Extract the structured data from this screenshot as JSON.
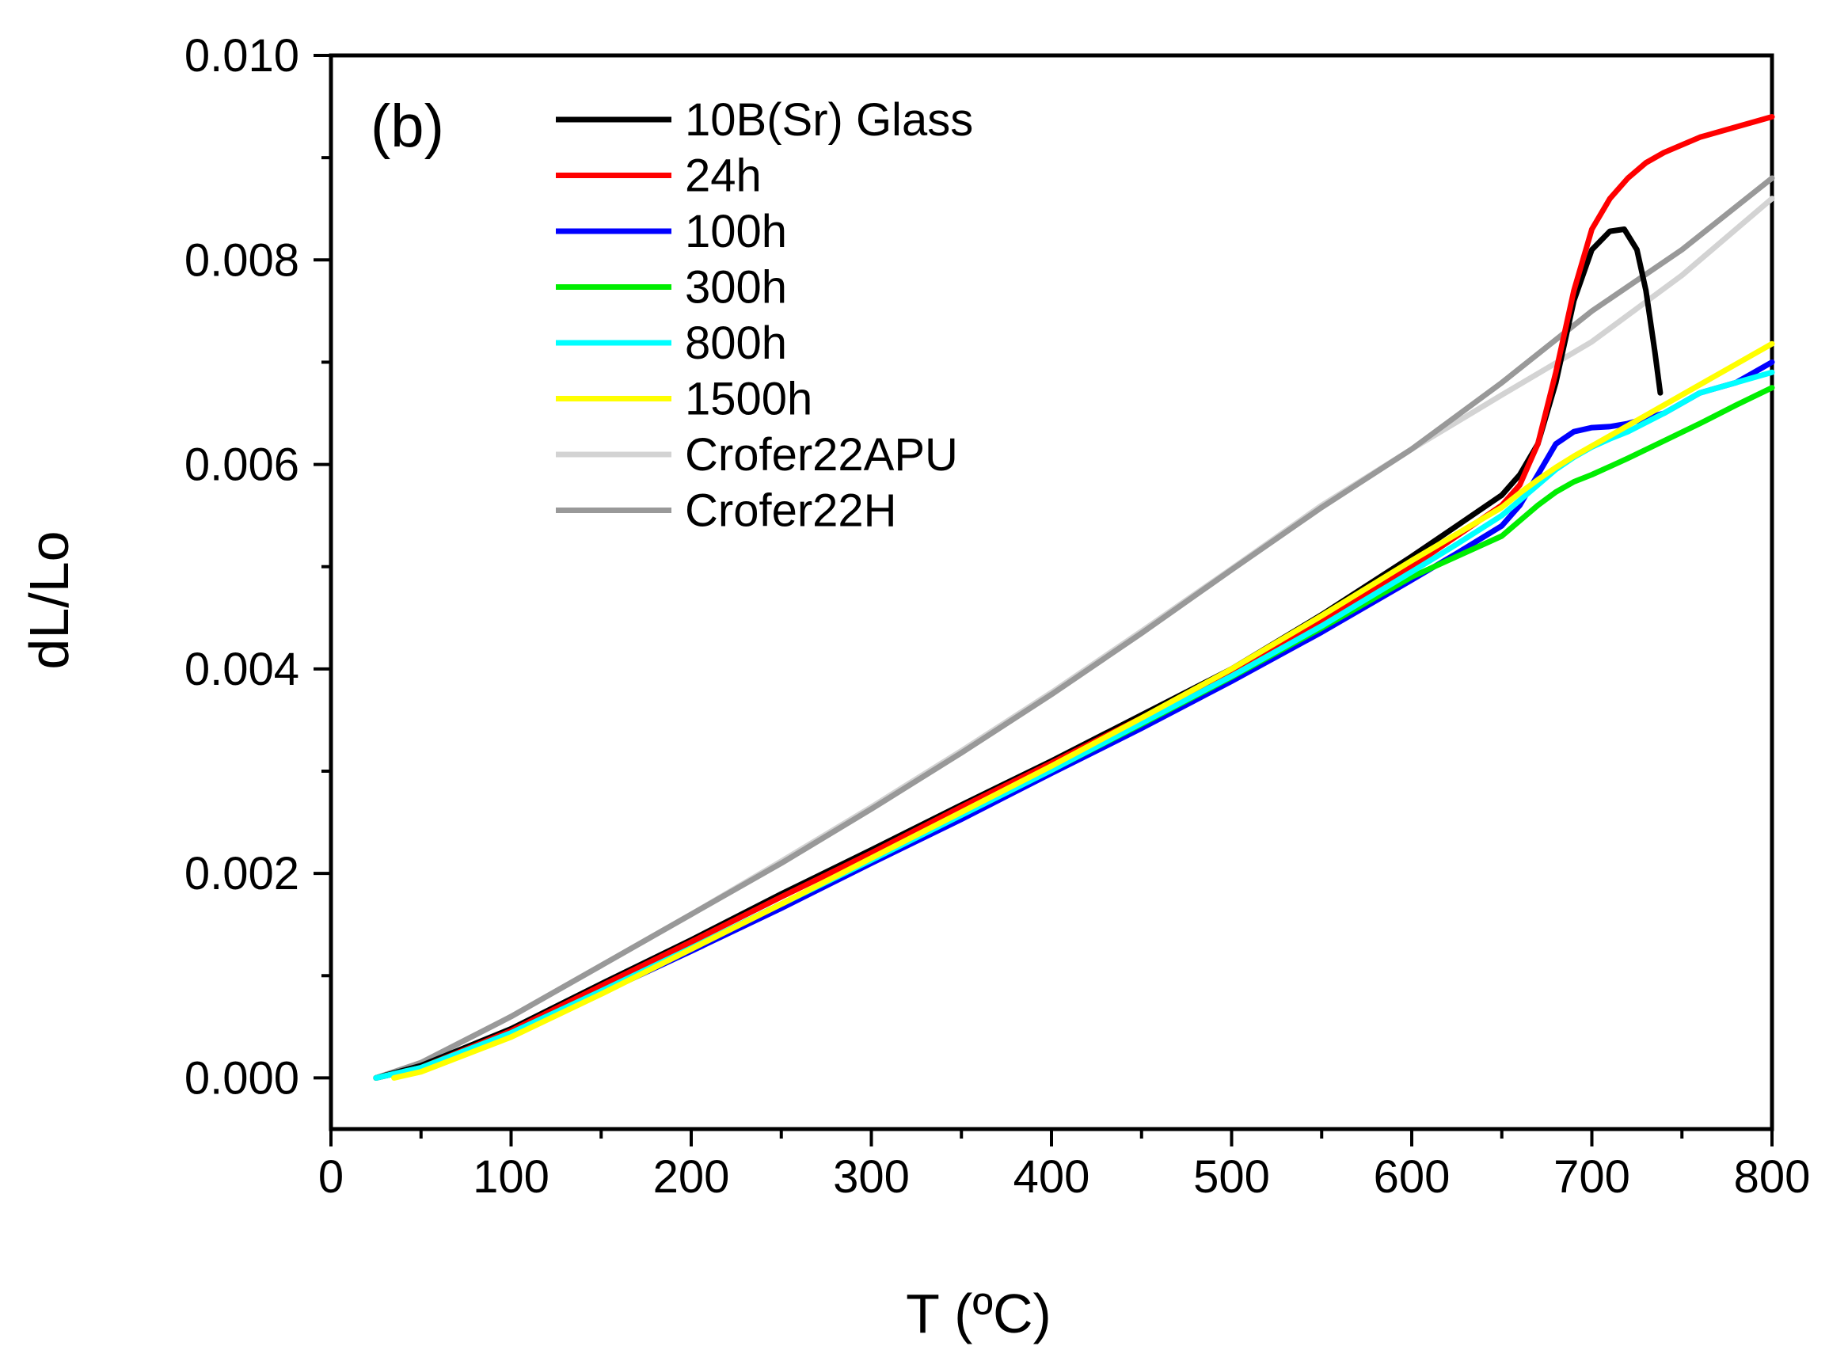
{
  "chart_data": {
    "type": "line",
    "panel_label": "(b)",
    "title": "",
    "xlabel": "T (ºC)",
    "ylabel": "dL/Lo",
    "xlim": [
      0,
      800
    ],
    "ylim": [
      -0.0005,
      0.01
    ],
    "xticks": [
      0,
      100,
      200,
      300,
      400,
      500,
      600,
      700,
      800
    ],
    "xtick_labels": [
      "0",
      "100",
      "200",
      "300",
      "400",
      "500",
      "600",
      "700",
      "800"
    ],
    "yticks": [
      0.0,
      0.002,
      0.004,
      0.006,
      0.008,
      0.01
    ],
    "ytick_labels": [
      "0.000",
      "0.002",
      "0.004",
      "0.006",
      "0.008",
      "0.010"
    ],
    "grid": false,
    "legend_position": "top-left",
    "series": [
      {
        "name": "10B(Sr) Glass",
        "color": "#000000",
        "x": [
          25,
          50,
          100,
          150,
          200,
          250,
          300,
          350,
          400,
          450,
          500,
          550,
          600,
          625,
          650,
          660,
          670,
          680,
          690,
          700,
          710,
          718,
          725,
          730,
          735,
          738
        ],
        "y": [
          0.0,
          0.00012,
          0.00048,
          0.00092,
          0.00135,
          0.0018,
          0.00223,
          0.00267,
          0.0031,
          0.00355,
          0.004,
          0.00453,
          0.0051,
          0.0054,
          0.0057,
          0.0059,
          0.0062,
          0.0068,
          0.0076,
          0.0081,
          0.00828,
          0.0083,
          0.0081,
          0.0077,
          0.0071,
          0.0067
        ]
      },
      {
        "name": "24h",
        "color": "#ff0000",
        "x": [
          25,
          50,
          100,
          150,
          200,
          250,
          300,
          350,
          400,
          450,
          500,
          550,
          600,
          625,
          650,
          660,
          670,
          680,
          690,
          700,
          710,
          720,
          730,
          740,
          760,
          780,
          800
        ],
        "y": [
          0.0,
          0.0001,
          0.00046,
          0.0009,
          0.00133,
          0.00177,
          0.0022,
          0.00265,
          0.00308,
          0.00352,
          0.00397,
          0.00446,
          0.005,
          0.0053,
          0.0056,
          0.0058,
          0.0062,
          0.0069,
          0.0077,
          0.0083,
          0.0086,
          0.0088,
          0.00895,
          0.00905,
          0.0092,
          0.0093,
          0.0094
        ]
      },
      {
        "name": "100h",
        "color": "#0000ff",
        "x": [
          25,
          50,
          100,
          150,
          200,
          250,
          300,
          350,
          400,
          450,
          500,
          550,
          600,
          625,
          650,
          660,
          670,
          680,
          690,
          700,
          710,
          720,
          740,
          760,
          780,
          800
        ],
        "y": [
          0.0,
          0.0001,
          0.00043,
          0.00083,
          0.00124,
          0.00166,
          0.0021,
          0.00253,
          0.00298,
          0.00342,
          0.00388,
          0.00436,
          0.00487,
          0.00513,
          0.0054,
          0.0056,
          0.0059,
          0.0062,
          0.00632,
          0.00636,
          0.00637,
          0.0064,
          0.0065,
          0.0067,
          0.0068,
          0.007
        ]
      },
      {
        "name": "300h",
        "color": "#00ee00",
        "x": [
          25,
          50,
          100,
          150,
          200,
          250,
          300,
          350,
          400,
          450,
          500,
          550,
          600,
          625,
          650,
          660,
          670,
          680,
          690,
          700,
          710,
          720,
          740,
          760,
          780,
          800
        ],
        "y": [
          0.0,
          0.0001,
          0.00044,
          0.00085,
          0.00127,
          0.0017,
          0.00213,
          0.00257,
          0.00301,
          0.00346,
          0.00392,
          0.0044,
          0.0049,
          0.0051,
          0.0053,
          0.00545,
          0.0056,
          0.00573,
          0.00583,
          0.0059,
          0.00598,
          0.00606,
          0.00623,
          0.0064,
          0.00658,
          0.00675
        ]
      },
      {
        "name": "800h",
        "color": "#00ffff",
        "x": [
          25,
          50,
          100,
          150,
          200,
          250,
          300,
          350,
          400,
          450,
          500,
          550,
          600,
          625,
          650,
          660,
          670,
          680,
          690,
          700,
          710,
          720,
          740,
          760,
          780,
          800
        ],
        "y": [
          0.0,
          0.0001,
          0.00044,
          0.00085,
          0.00127,
          0.0017,
          0.00213,
          0.00257,
          0.00301,
          0.00347,
          0.00393,
          0.00442,
          0.00495,
          0.00522,
          0.0055,
          0.00565,
          0.0058,
          0.00595,
          0.00607,
          0.00617,
          0.00625,
          0.00632,
          0.0065,
          0.0067,
          0.0068,
          0.0069
        ]
      },
      {
        "name": "1500h",
        "color": "#ffff00",
        "x": [
          35,
          50,
          100,
          150,
          200,
          250,
          300,
          350,
          400,
          450,
          500,
          550,
          600,
          625,
          650,
          660,
          670,
          680,
          690,
          700,
          710,
          720,
          740,
          760,
          780,
          800
        ],
        "y": [
          0.0,
          6e-05,
          0.0004,
          0.00082,
          0.00126,
          0.0017,
          0.00215,
          0.0026,
          0.00305,
          0.00352,
          0.004,
          0.00452,
          0.00506,
          0.00532,
          0.00558,
          0.00572,
          0.00585,
          0.00597,
          0.00608,
          0.00618,
          0.00628,
          0.00638,
          0.00658,
          0.00678,
          0.00698,
          0.00718
        ]
      },
      {
        "name": "Crofer22APU",
        "color": "#d3d3d3",
        "x": [
          25,
          50,
          100,
          150,
          200,
          250,
          300,
          350,
          400,
          450,
          500,
          550,
          600,
          650,
          700,
          750,
          800
        ],
        "y": [
          0.0,
          0.00015,
          0.0006,
          0.0011,
          0.0016,
          0.00212,
          0.00265,
          0.0032,
          0.00377,
          0.00437,
          0.00498,
          0.0056,
          0.00615,
          0.00668,
          0.0072,
          0.00785,
          0.0086
        ]
      },
      {
        "name": "Crofer22H",
        "color": "#999999",
        "x": [
          25,
          50,
          100,
          150,
          200,
          250,
          300,
          350,
          400,
          450,
          500,
          550,
          600,
          650,
          700,
          750,
          800
        ],
        "y": [
          0.0,
          0.00015,
          0.0006,
          0.0011,
          0.0016,
          0.0021,
          0.00263,
          0.00318,
          0.00375,
          0.00435,
          0.00497,
          0.00558,
          0.00615,
          0.0068,
          0.0075,
          0.0081,
          0.0088
        ]
      }
    ]
  }
}
